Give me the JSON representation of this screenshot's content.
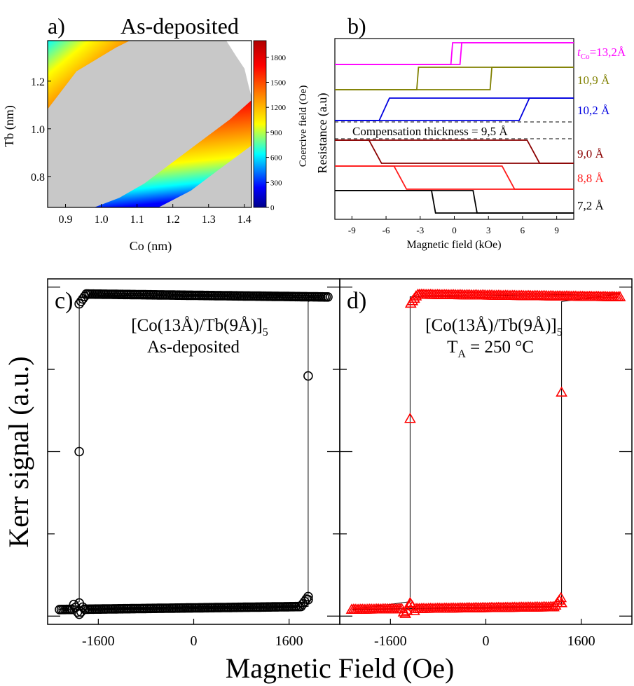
{
  "panels": {
    "a": {
      "label": "a)",
      "title": "As-deposited"
    },
    "b": {
      "label": "b)"
    },
    "c": {
      "label": "c)",
      "sample_main": "[Co(13Å)/Tb(9Å)]",
      "sample_sub": "5",
      "condition": "As-deposited"
    },
    "d": {
      "label": "d)",
      "sample_main": "[Co(13Å)/Tb(9Å)]",
      "sample_sub": "5",
      "cond_main": "T",
      "cond_sub": "A",
      "cond_rest": " = 250 °C"
    }
  },
  "chart_data": [
    {
      "id": "a",
      "type": "heatmap",
      "title": "As-deposited",
      "xlabel": "Co (nm)",
      "ylabel": "Tb (nm)",
      "xlim": [
        0.85,
        1.42
      ],
      "ylim": [
        0.67,
        1.37
      ],
      "xticks": [
        0.9,
        1.0,
        1.1,
        1.2,
        1.3,
        1.4
      ],
      "yticks": [
        0.8,
        1.0,
        1.2
      ],
      "colorbar": {
        "label": "Coercive field (Oe)",
        "range": [
          0,
          2000
        ],
        "ticks": [
          0,
          300,
          600,
          900,
          1200,
          1500,
          1800
        ],
        "colors": [
          "#00008b",
          "#0000ff",
          "#00ffff",
          "#ffff00",
          "#ff7f00",
          "#ff0000",
          "#b00000"
        ]
      },
      "regions": {
        "magnetically_compensated_color": "#c8c8c8",
        "upper_boundary": {
          "co": [
            0.85,
            0.91,
            0.97,
            1.02,
            1.07
          ],
          "tb": [
            1.2,
            1.25,
            1.3,
            1.35,
            1.37
          ]
        },
        "lower_boundary": {
          "co": [
            0.98,
            1.05,
            1.12,
            1.2,
            1.28,
            1.36,
            1.42
          ],
          "tb": [
            0.67,
            0.71,
            0.77,
            0.86,
            0.95,
            1.04,
            1.12
          ]
        }
      }
    },
    {
      "id": "b",
      "type": "line",
      "xlabel": "Magnetic field (kOe)",
      "ylabel": "Resistance (a.u)",
      "xlim": [
        -10.5,
        10.5
      ],
      "xticks": [
        -9,
        -6,
        -3,
        0,
        3,
        6,
        9
      ],
      "annotation": "Compensation thickness = 9,5 Å",
      "series": [
        {
          "name_prefix": "t",
          "name_sub": "Co",
          "name": "=13,2Å",
          "color": "#ff00ff",
          "hc": 0.65,
          "hc_descending": -0.3,
          "level": 5.2
        },
        {
          "name": "10,9 Å",
          "color": "#808000",
          "hc": 3.3,
          "hc_descending": -3.3,
          "level": 4.05
        },
        {
          "name": "10,2 Å",
          "color": "#0000e0",
          "hc": 6.6,
          "hc_descending": -6.6,
          "level": 2.9
        },
        {
          "name": "9,0 Å",
          "color": "#8b0000",
          "hc": 7.3,
          "hc_descending": -7.3,
          "level": 1.45,
          "inverted": true
        },
        {
          "name": "8,8 Å",
          "color": "#ff1a1a",
          "hc": 5.1,
          "hc_descending": -5.1,
          "level": 0.3,
          "inverted": true
        },
        {
          "name": "7,2 Å",
          "color": "#000000",
          "hc": 1.8,
          "hc_descending": -1.8,
          "level": -0.85,
          "inverted": true
        }
      ]
    },
    {
      "id": "c",
      "type": "scatter",
      "xlabel": "Magnetic Field (Oe)",
      "ylabel": "Kerr signal (a.u.)",
      "xlim": [
        -2450,
        2450
      ],
      "ylim": [
        -1.05,
        1.05
      ],
      "xticks": [
        -1600,
        0,
        1600
      ],
      "color": "#000000",
      "marker": "circle",
      "hmax": 2250,
      "hc": 1920,
      "saturation": 0.96,
      "switch_points": [
        {
          "x": -1920,
          "y": 0.0
        },
        {
          "x": 1920,
          "y": 0.46
        },
        {
          "x": -1920,
          "y": -0.92
        },
        {
          "x": 1920,
          "y": -0.9
        }
      ]
    },
    {
      "id": "d",
      "type": "scatter",
      "xlabel": "Magnetic Field (Oe)",
      "ylabel": "Kerr signal (a.u.)",
      "xlim": [
        -2450,
        2450
      ],
      "ylim": [
        -1.05,
        1.05
      ],
      "xticks": [
        -1600,
        0,
        1600
      ],
      "color": "#ff0000",
      "marker": "triangle",
      "hmax": 2250,
      "hc": 1270,
      "saturation": 0.96,
      "switch_points": [
        {
          "x": -1270,
          "y": 0.2
        },
        {
          "x": 1270,
          "y": 0.36
        },
        {
          "x": -1270,
          "y": -0.92
        },
        {
          "x": 1270,
          "y": -0.92
        }
      ]
    }
  ],
  "shared_labels": {
    "bottom_xlabel": "Magnetic Field (Oe)",
    "left_ylabel": "Kerr signal (a.u.)"
  }
}
